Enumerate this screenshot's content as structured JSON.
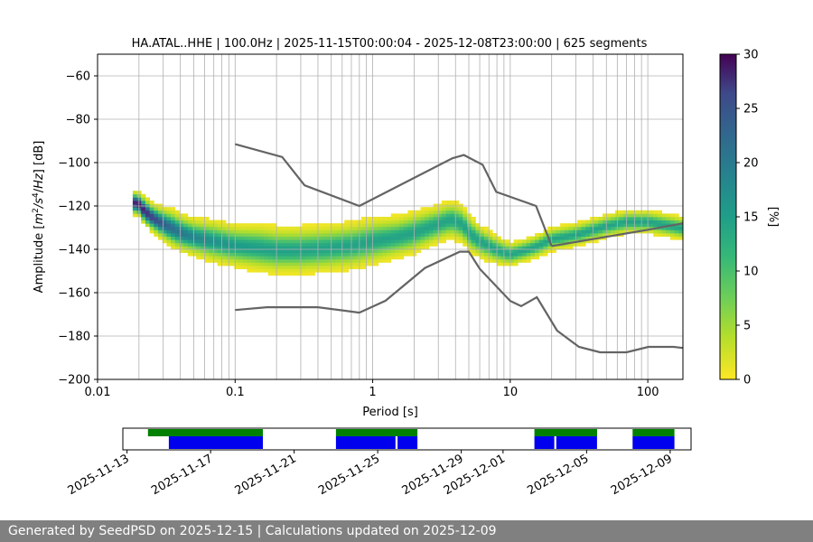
{
  "chart_data": {
    "type": "heatmap",
    "title": "HA.ATAL..HHE | 100.0Hz | 2025-11-15T00:00:04 - 2025-12-08T23:00:00 | 625 segments",
    "xlabel": "Period [s]",
    "ylabel": "Amplitude [m²/s⁴/Hz] [dB]",
    "xscale": "log",
    "xlim": [
      0.01,
      180
    ],
    "ylim": [
      -200,
      -50
    ],
    "x_ticks": [
      0.01,
      0.1,
      1,
      10,
      100
    ],
    "x_tick_labels": [
      "0.01",
      "0.1",
      "1",
      "10",
      "100"
    ],
    "y_ticks": [
      -60,
      -80,
      -100,
      -120,
      -140,
      -160,
      -180,
      -200
    ],
    "y_tick_labels": [
      "−60",
      "−80",
      "−100",
      "−120",
      "−140",
      "−160",
      "−180",
      "−200"
    ],
    "colorbar": {
      "label": "[%]",
      "range": [
        0,
        30
      ],
      "ticks": [
        0,
        5,
        10,
        15,
        20,
        25,
        30
      ],
      "tick_labels": [
        "0",
        "5",
        "10",
        "15",
        "20",
        "25",
        "30"
      ],
      "colormap": "viridis_r"
    },
    "mode_curve": {
      "name": "psd mode",
      "x": [
        0.018,
        0.02,
        0.022,
        0.025,
        0.03,
        0.035,
        0.04,
        0.05,
        0.07,
        0.1,
        0.15,
        0.2,
        0.3,
        0.5,
        0.7,
        1,
        1.5,
        2,
        3,
        3.7,
        4.5,
        5,
        6,
        8,
        10,
        13,
        16,
        20,
        30,
        50,
        70,
        100,
        150,
        180
      ],
      "y": [
        -119,
        -120,
        -123,
        -126,
        -129,
        -131,
        -133,
        -135,
        -137,
        -139,
        -140,
        -141,
        -141,
        -140,
        -139,
        -137,
        -135,
        -133,
        -129,
        -127,
        -129,
        -133,
        -137,
        -141,
        -143,
        -141,
        -139,
        -136,
        -134,
        -130,
        -128,
        -128,
        -130,
        -131
      ],
      "spread_db": [
        5,
        5,
        6,
        6,
        7,
        8,
        8,
        8,
        9,
        9,
        10,
        10,
        10,
        10,
        10,
        10,
        9,
        9,
        8,
        8,
        8,
        8,
        7,
        6,
        5,
        5,
        5,
        5,
        5,
        5,
        5,
        5,
        5,
        5
      ]
    },
    "noise_models": [
      {
        "name": "NHNM",
        "x": [
          0.1,
          0.22,
          0.32,
          0.8,
          3.8,
          4.6,
          6.3,
          7.9,
          15.4,
          20
        ],
        "y": [
          -91.5,
          -97.4,
          -110.5,
          -120,
          -98,
          -96.5,
          -101,
          -113.5,
          -120,
          -138.5
        ]
      },
      {
        "name": "HNM-tail",
        "x": [
          20,
          100,
          180
        ],
        "y": [
          -138.5,
          -131,
          -128
        ]
      },
      {
        "name": "NLNM",
        "x": [
          0.1,
          0.17,
          0.4,
          0.8,
          1.24,
          2.4,
          4.3,
          5,
          6,
          10,
          12,
          15.6,
          21.9,
          31.6,
          45,
          70,
          101,
          154,
          180
        ],
        "y": [
          -168,
          -166.7,
          -166.7,
          -169.2,
          -163.7,
          -148.6,
          -141.1,
          -141.1,
          -149,
          -163.8,
          -166.2,
          -162.1,
          -177.5,
          -185,
          -187.5,
          -187.5,
          -185,
          -185,
          -185.5
        ]
      }
    ],
    "availability": {
      "x_tick_labels": [
        "2025-11-13",
        "2025-11-17",
        "2025-11-21",
        "2025-11-25",
        "2025-11-29",
        "2025-12-01",
        "2025-12-05",
        "2025-12-09"
      ],
      "x_tick_days": [
        0,
        4,
        8,
        12,
        16,
        18,
        22,
        26
      ],
      "xlim_days": [
        -0.2,
        27
      ],
      "data_segments": [
        [
          1,
          6.5
        ],
        [
          10,
          13.9
        ],
        [
          19.5,
          22.5
        ],
        [
          24.2,
          26.2
        ]
      ],
      "used_segments": [
        [
          2,
          6.5
        ],
        [
          10,
          12.85
        ],
        [
          12.95,
          13.9
        ],
        [
          19.5,
          20.45
        ],
        [
          20.55,
          22.5
        ],
        [
          24.2,
          26.2
        ]
      ]
    }
  },
  "footer": {
    "text": "Generated by SeedPSD on 2025-12-15 | Calculations updated on 2025-12-09"
  }
}
